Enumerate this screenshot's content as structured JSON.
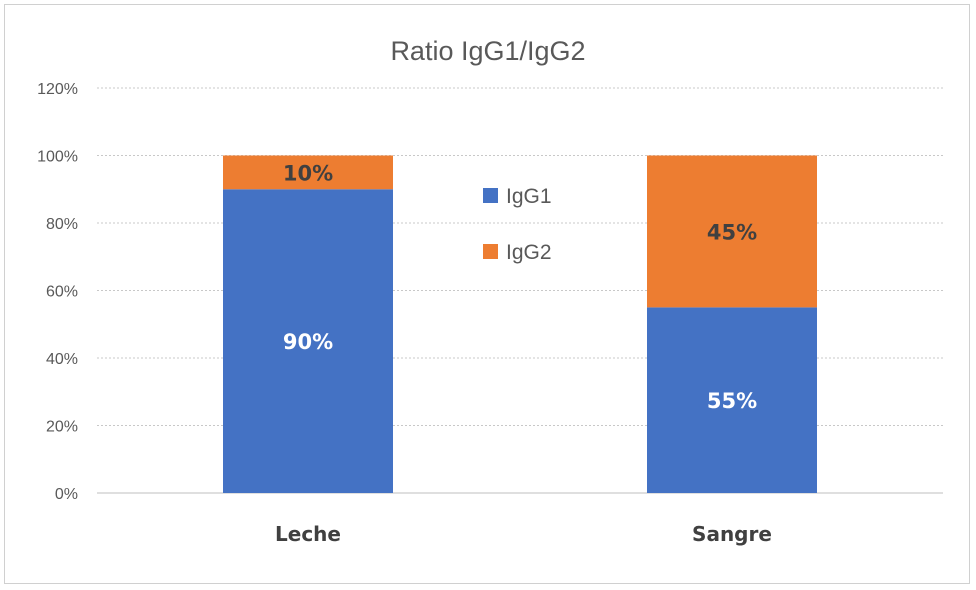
{
  "chart_data": {
    "type": "bar",
    "stacked": true,
    "title": "Ratio IgG1/IgG2",
    "categories": [
      "Leche",
      "Sangre"
    ],
    "series": [
      {
        "name": "IgG1",
        "values": [
          0.9,
          0.55
        ],
        "labels": [
          "90%",
          "55%"
        ],
        "color": "#4472C4",
        "label_color": "#ffffff"
      },
      {
        "name": "IgG2",
        "values": [
          0.1,
          0.45
        ],
        "labels": [
          "10%",
          "45%"
        ],
        "color": "#ED7D31",
        "label_color": "#404040"
      }
    ],
    "ylim": [
      0,
      1.2
    ],
    "yticks": [
      "0%",
      "20%",
      "40%",
      "60%",
      "80%",
      "100%",
      "120%"
    ],
    "ytick_values": [
      0,
      0.2,
      0.4,
      0.6,
      0.8,
      1.0,
      1.2
    ],
    "grid": true,
    "legend_position": "center"
  }
}
